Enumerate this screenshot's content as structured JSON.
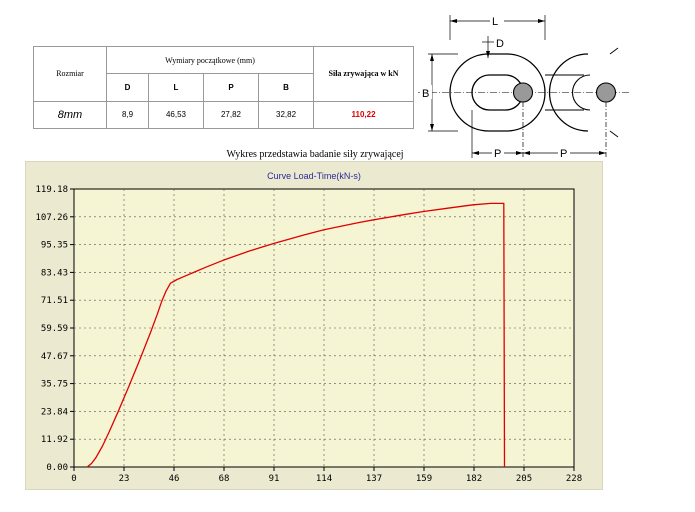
{
  "table": {
    "size_header": "Rozmiar",
    "dims_header": "Wymiary początkowe (mm)",
    "col_d": "D",
    "col_l": "L",
    "col_p": "P",
    "col_b": "B",
    "force_header": "Siła zrywająca w kN",
    "row": {
      "size": "8mm",
      "d": "8,9",
      "l": "46,53",
      "p": "27,82",
      "b": "32,82",
      "force": "110,22"
    },
    "force_color": "#e00000"
  },
  "caption": "Wykres przedstawia badanie siły zrywającej",
  "diagram": {
    "label_l": "L",
    "label_d": "D",
    "label_b": "B",
    "label_p1": "P",
    "label_p2": "P"
  },
  "chart_data": {
    "type": "line",
    "title": "Curve Load-Time(kN-s)",
    "xlabel": "",
    "ylabel": "",
    "xlim": [
      0,
      228
    ],
    "ylim": [
      0,
      119.18
    ],
    "x_ticks": [
      "0",
      "23",
      "46",
      "68",
      "91",
      "114",
      "137",
      "159",
      "182",
      "205",
      "228"
    ],
    "y_ticks": [
      "0.00",
      "11.92",
      "23.84",
      "35.75",
      "47.67",
      "59.59",
      "71.51",
      "83.43",
      "95.35",
      "107.26",
      "119.18"
    ],
    "grid": true,
    "line_color": "#e00000",
    "background": "#f5f5d4",
    "series": [
      {
        "x": [
          6,
          8,
          10,
          13,
          16,
          20,
          25,
          30,
          35,
          38,
          40,
          42,
          44,
          47,
          50,
          55,
          60,
          68,
          80,
          91,
          105,
          114,
          130,
          137,
          150,
          159,
          170,
          182,
          190,
          194,
          196,
          196.3
        ],
        "y": [
          0,
          1.5,
          4,
          9,
          15,
          23.5,
          34.5,
          46,
          58,
          65.5,
          71,
          75.5,
          78.8,
          80.4,
          81.6,
          83.6,
          85.6,
          88.6,
          92.6,
          95.8,
          99.5,
          101.7,
          104.8,
          106,
          108.1,
          109.5,
          110.9,
          112.4,
          113,
          113,
          113,
          0
        ]
      }
    ]
  }
}
